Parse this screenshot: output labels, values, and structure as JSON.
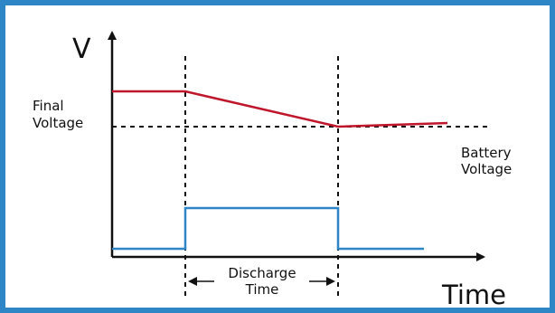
{
  "labels": {
    "y_axis": "V",
    "x_axis": "Time",
    "final_voltage": [
      "Final",
      "Voltage"
    ],
    "battery_voltage": [
      "Battery",
      "Voltage"
    ],
    "discharge_time": [
      "Discharge",
      "Time"
    ]
  },
  "colors": {
    "frame": "#2f86c7",
    "voltage_line": "#c0162c",
    "pulse_line": "#2f86c7",
    "axis": "#111111"
  }
}
